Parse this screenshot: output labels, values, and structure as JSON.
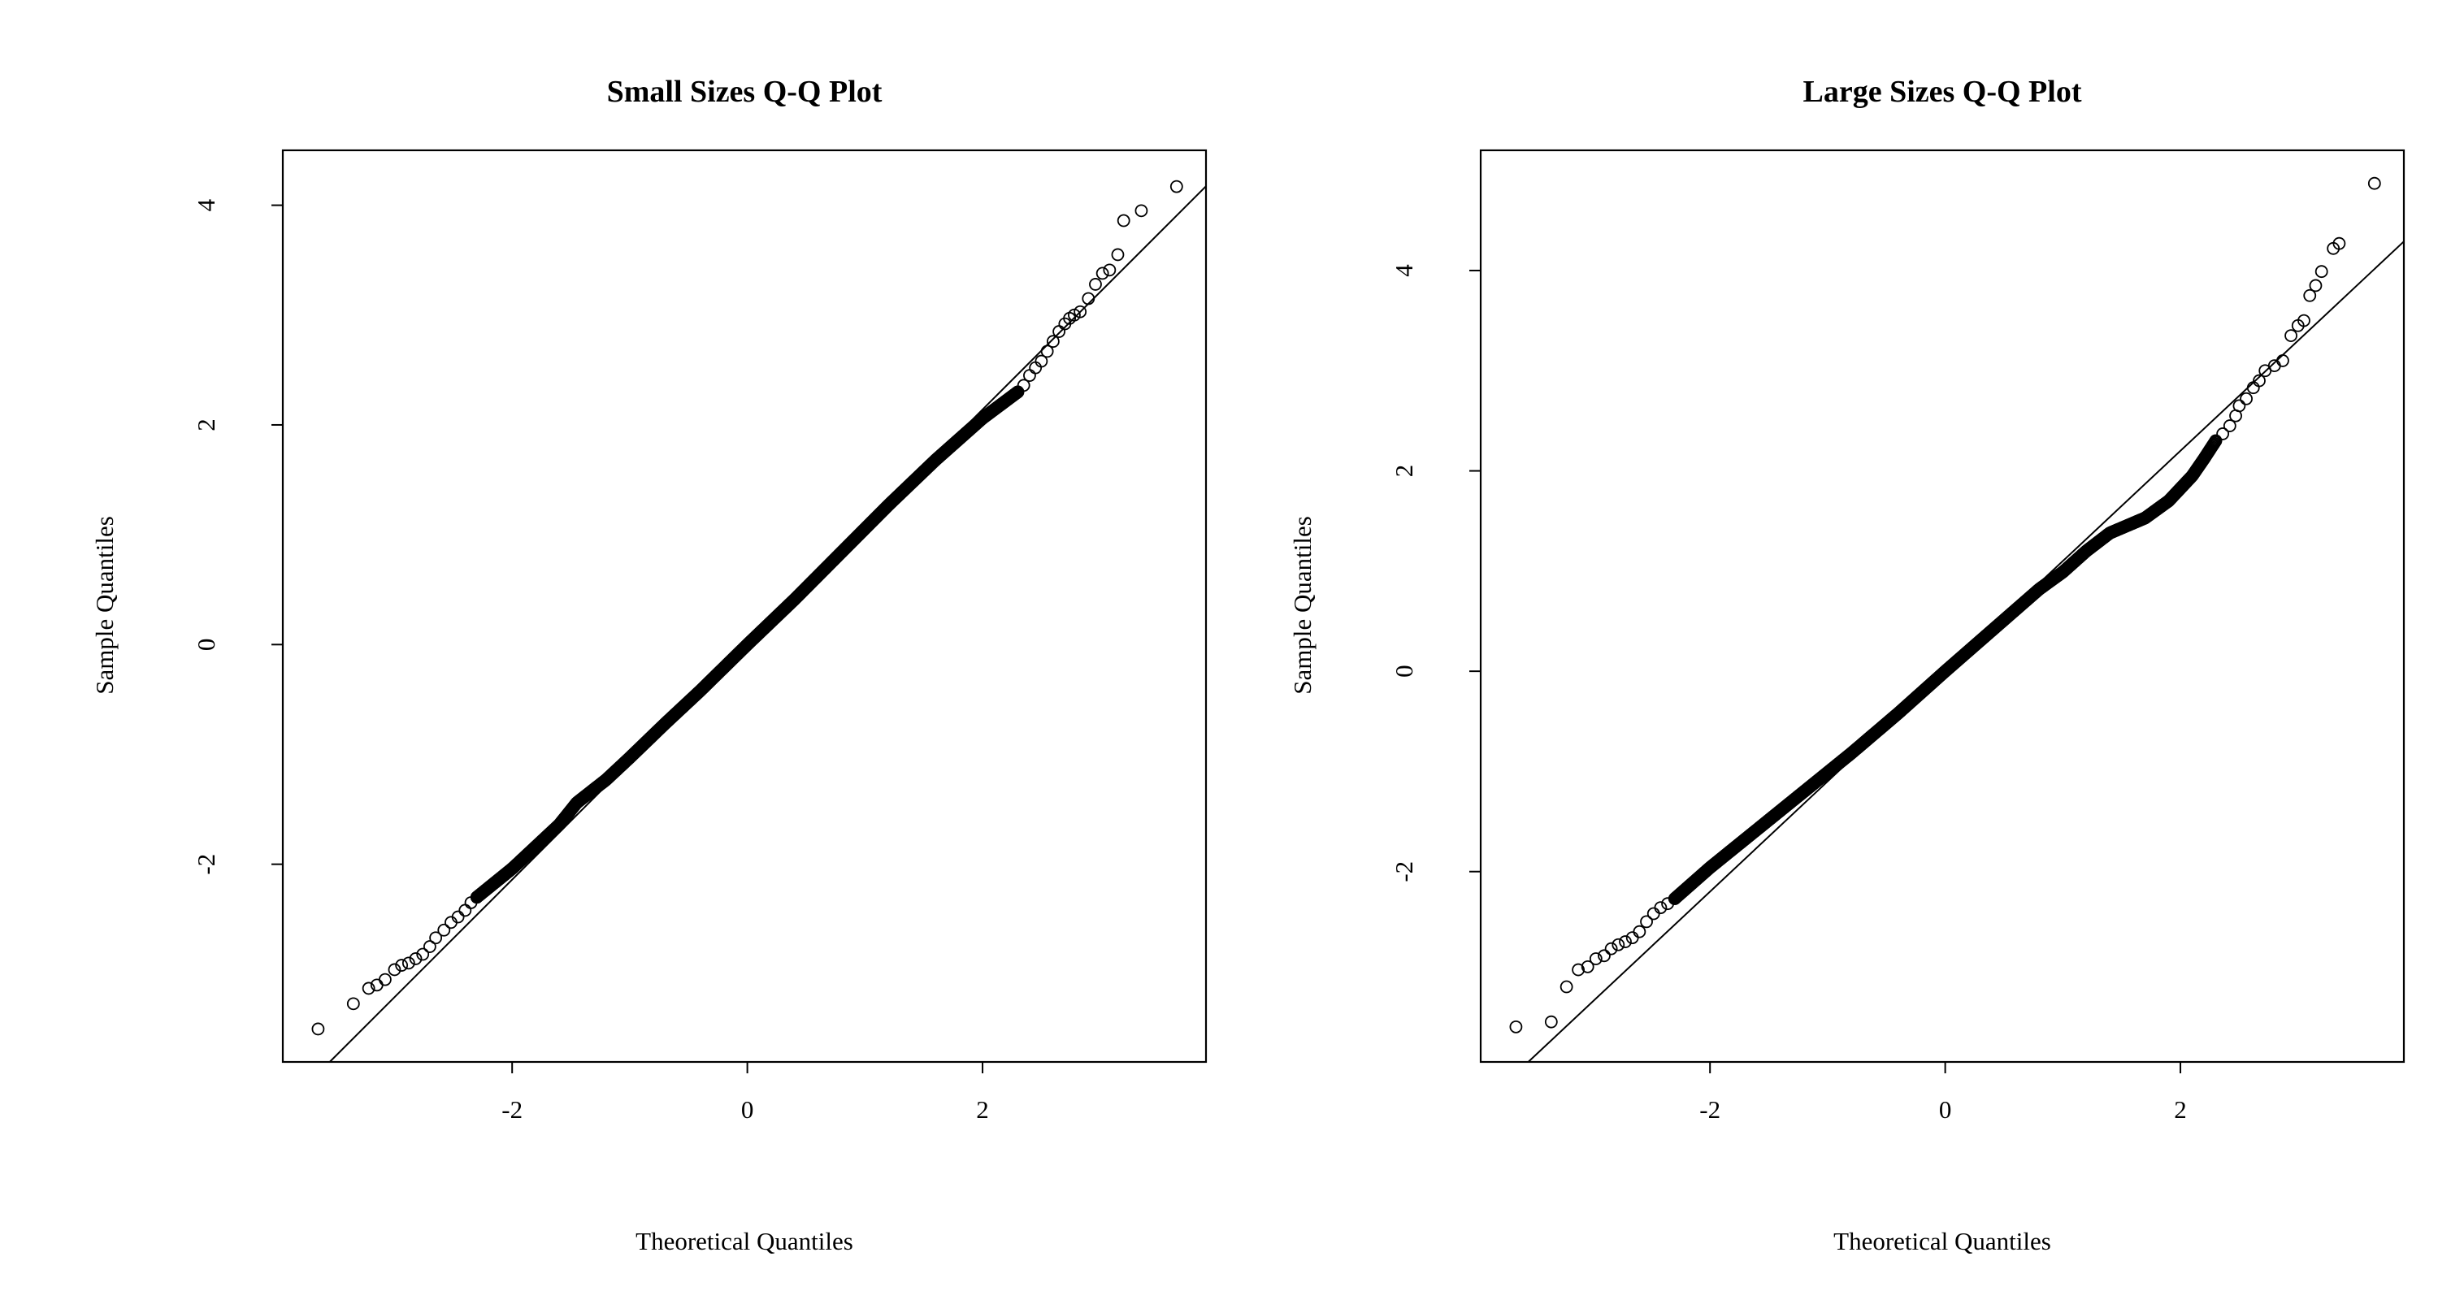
{
  "chart_data": [
    {
      "type": "scatter",
      "title": "Small Sizes Q-Q Plot",
      "xlabel": "Theoretical Quantiles",
      "ylabel": "Sample Quantiles",
      "xlim": [
        -3.95,
        3.9
      ],
      "ylim": [
        -3.8,
        4.5
      ],
      "xticks": [
        -2,
        0,
        2
      ],
      "yticks": [
        -2,
        0,
        2,
        4
      ],
      "grid": false,
      "reference_line": {
        "slope": 1.07,
        "intercept": 0.0
      },
      "tail_points": [
        [
          -3.65,
          -3.5
        ],
        [
          -3.35,
          -3.27
        ],
        [
          -3.22,
          -3.13
        ],
        [
          -3.15,
          -3.1
        ],
        [
          -3.08,
          -3.05
        ],
        [
          -3.0,
          -2.96
        ],
        [
          -2.94,
          -2.92
        ],
        [
          -2.88,
          -2.9
        ],
        [
          -2.82,
          -2.86
        ],
        [
          -2.76,
          -2.82
        ],
        [
          -2.7,
          -2.75
        ],
        [
          -2.65,
          -2.67
        ],
        [
          -2.58,
          -2.6
        ],
        [
          -2.52,
          -2.53
        ],
        [
          -2.46,
          -2.48
        ],
        [
          -2.4,
          -2.42
        ],
        [
          -2.35,
          -2.35
        ],
        [
          -2.3,
          -2.3
        ],
        [
          2.3,
          2.3
        ],
        [
          2.35,
          2.36
        ],
        [
          2.4,
          2.45
        ],
        [
          2.45,
          2.52
        ],
        [
          2.5,
          2.58
        ],
        [
          2.55,
          2.67
        ],
        [
          2.6,
          2.76
        ],
        [
          2.65,
          2.85
        ],
        [
          2.7,
          2.92
        ],
        [
          2.74,
          2.97
        ],
        [
          2.78,
          3.0
        ],
        [
          2.83,
          3.03
        ],
        [
          2.9,
          3.15
        ],
        [
          2.96,
          3.28
        ],
        [
          3.02,
          3.38
        ],
        [
          3.08,
          3.41
        ],
        [
          3.15,
          3.55
        ],
        [
          3.2,
          3.86
        ],
        [
          3.35,
          3.95
        ],
        [
          3.65,
          4.17
        ]
      ],
      "body_range": [
        -2.3,
        2.3
      ],
      "body_deviation": [
        [
          -2.3,
          -2.3
        ],
        [
          -2.0,
          -2.04
        ],
        [
          -1.8,
          -1.84
        ],
        [
          -1.6,
          -1.64
        ],
        [
          -1.45,
          -1.44
        ],
        [
          -1.2,
          -1.23
        ],
        [
          -1.0,
          -1.03
        ],
        [
          -0.7,
          -0.72
        ],
        [
          -0.4,
          -0.42
        ],
        [
          0.0,
          0.0
        ],
        [
          0.4,
          0.41
        ],
        [
          0.8,
          0.84
        ],
        [
          1.2,
          1.27
        ],
        [
          1.6,
          1.68
        ],
        [
          2.0,
          2.06
        ],
        [
          2.3,
          2.3
        ]
      ]
    },
    {
      "type": "scatter",
      "title": "Large Sizes Q-Q Plot",
      "xlabel": "Theoretical Quantiles",
      "ylabel": "Sample Quantiles",
      "xlim": [
        -3.95,
        3.9
      ],
      "ylim": [
        -3.9,
        5.2
      ],
      "xticks": [
        -2,
        0,
        2
      ],
      "yticks": [
        -2,
        0,
        2,
        4
      ],
      "grid": false,
      "reference_line": {
        "slope": 1.1,
        "intercept": 0.0
      },
      "tail_points": [
        [
          -3.65,
          -3.55
        ],
        [
          -3.35,
          -3.5
        ],
        [
          -3.22,
          -3.15
        ],
        [
          -3.12,
          -2.98
        ],
        [
          -3.04,
          -2.95
        ],
        [
          -2.97,
          -2.87
        ],
        [
          -2.9,
          -2.84
        ],
        [
          -2.84,
          -2.77
        ],
        [
          -2.78,
          -2.73
        ],
        [
          -2.72,
          -2.7
        ],
        [
          -2.66,
          -2.66
        ],
        [
          -2.6,
          -2.6
        ],
        [
          -2.54,
          -2.5
        ],
        [
          -2.48,
          -2.42
        ],
        [
          -2.42,
          -2.36
        ],
        [
          -2.36,
          -2.32
        ],
        [
          -2.3,
          -2.27
        ],
        [
          2.3,
          2.3
        ],
        [
          2.36,
          2.37
        ],
        [
          2.42,
          2.45
        ],
        [
          2.47,
          2.55
        ],
        [
          2.5,
          2.65
        ],
        [
          2.56,
          2.72
        ],
        [
          2.62,
          2.83
        ],
        [
          2.67,
          2.9
        ],
        [
          2.72,
          3.0
        ],
        [
          2.8,
          3.05
        ],
        [
          2.87,
          3.1
        ],
        [
          2.94,
          3.35
        ],
        [
          3.0,
          3.45
        ],
        [
          3.05,
          3.5
        ],
        [
          3.1,
          3.75
        ],
        [
          3.15,
          3.85
        ],
        [
          3.2,
          3.99
        ],
        [
          3.3,
          4.22
        ],
        [
          3.35,
          4.27
        ],
        [
          3.65,
          4.87
        ]
      ],
      "body_range": [
        -2.3,
        2.3
      ],
      "body_deviation": [
        [
          -2.3,
          -2.27
        ],
        [
          -2.0,
          -1.96
        ],
        [
          -1.6,
          -1.58
        ],
        [
          -1.2,
          -1.2
        ],
        [
          -0.8,
          -0.82
        ],
        [
          -0.4,
          -0.42
        ],
        [
          0.0,
          0.0
        ],
        [
          0.4,
          0.41
        ],
        [
          0.8,
          0.82
        ],
        [
          1.0,
          0.99
        ],
        [
          1.2,
          1.2
        ],
        [
          1.4,
          1.38
        ],
        [
          1.5,
          1.43
        ],
        [
          1.7,
          1.53
        ],
        [
          1.9,
          1.7
        ],
        [
          2.1,
          1.95
        ],
        [
          2.2,
          2.12
        ],
        [
          2.3,
          2.3
        ]
      ]
    }
  ]
}
